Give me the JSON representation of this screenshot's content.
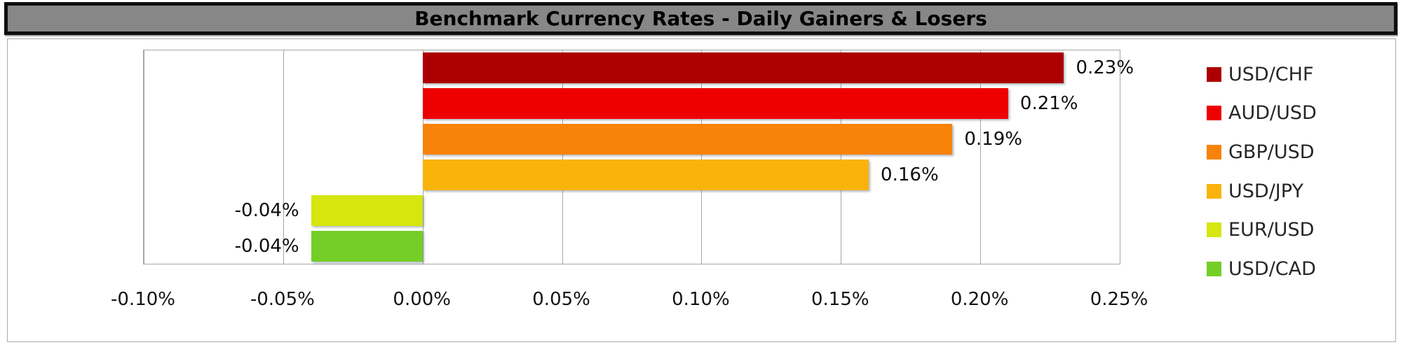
{
  "title_bar": {
    "title": "Benchmark Currency Rates - Daily Gainers & Losers"
  },
  "chart_data": {
    "type": "bar",
    "orientation": "horizontal",
    "title": "Benchmark Currency Rates - Daily Gainers & Losers",
    "xlabel": "",
    "ylabel": "",
    "categories": [
      "USD/CHF",
      "AUD/USD",
      "GBP/USD",
      "USD/JPY",
      "EUR/USD",
      "USD/CAD"
    ],
    "values": [
      0.23,
      0.21,
      0.19,
      0.16,
      -0.04,
      -0.04
    ],
    "data_labels": [
      "0.23%",
      "0.21%",
      "0.19%",
      "0.16%",
      "-0.04%",
      "-0.04%"
    ],
    "colors": [
      "#ac0000",
      "#ee0000",
      "#f8830b",
      "#fab30b",
      "#d6e60e",
      "#74ce26"
    ],
    "x_ticks": [
      "-0.10%",
      "-0.05%",
      "0.00%",
      "0.05%",
      "0.10%",
      "0.15%",
      "0.20%",
      "0.25%"
    ],
    "x_tick_values": [
      -0.1,
      -0.05,
      0.0,
      0.05,
      0.1,
      0.15,
      0.2,
      0.25
    ],
    "xlim": [
      -0.1,
      0.25
    ],
    "grid": true,
    "legend_position": "right"
  },
  "style": {
    "title_background": "#878787",
    "title_border": "#0f0f0f",
    "grid_color": "#a6a6a6",
    "label_color": "#0d0d0d"
  }
}
